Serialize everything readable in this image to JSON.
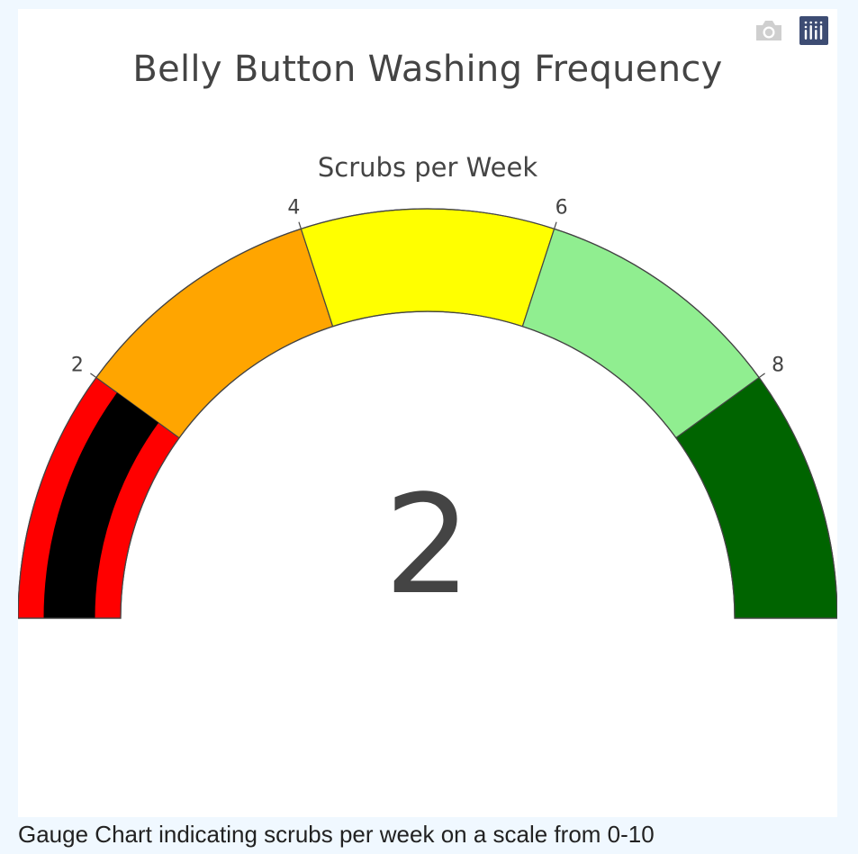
{
  "chart_data": {
    "type": "gauge",
    "title": "Belly Button Washing Frequency",
    "subtitle": "Scrubs per Week",
    "value": 2,
    "range": [
      0,
      10
    ],
    "bar_color": "#000000",
    "ticks": [
      {
        "value": 2,
        "label": "2"
      },
      {
        "value": 4,
        "label": "4"
      },
      {
        "value": 6,
        "label": "6"
      },
      {
        "value": 8,
        "label": "8"
      }
    ],
    "steps": [
      {
        "range": [
          0,
          2
        ],
        "color": "#ff0000"
      },
      {
        "range": [
          2,
          4
        ],
        "color": "#ffa500"
      },
      {
        "range": [
          4,
          6
        ],
        "color": "#ffff00"
      },
      {
        "range": [
          6,
          8
        ],
        "color": "#90ee90"
      },
      {
        "range": [
          8,
          10
        ],
        "color": "#006400"
      }
    ]
  },
  "caption": "Gauge Chart indicating scrubs per week on a scale from 0-10",
  "modebar": {
    "icons": [
      "camera-icon",
      "plotly-logo-icon"
    ]
  }
}
